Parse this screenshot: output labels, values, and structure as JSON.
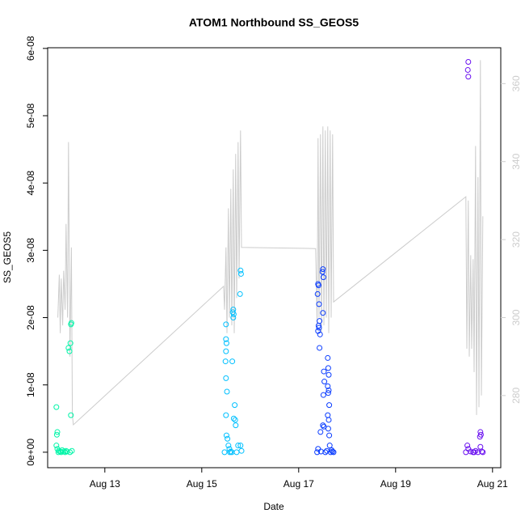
{
  "chart_data": {
    "type": "scatter",
    "title": "ATOM1 Northbound SS_GEOS5",
    "x_label": "Date",
    "y_label": "SS_GEOS5",
    "xlim": [
      11.82,
      21.17
    ],
    "xticks": [
      {
        "value": 13,
        "label": "Aug 13"
      },
      {
        "value": 15,
        "label": "Aug 15"
      },
      {
        "value": 17,
        "label": "Aug 17"
      },
      {
        "value": 19,
        "label": "Aug 19"
      },
      {
        "value": 21,
        "label": "Aug 21"
      }
    ],
    "ylim": [
      -2.3e-09,
      6.01e-08
    ],
    "yticks": [
      {
        "value": 0,
        "label": "0e+00"
      },
      {
        "value": 1e-08,
        "label": "1e-08"
      },
      {
        "value": 2e-08,
        "label": "2e-08"
      },
      {
        "value": 3e-08,
        "label": "3e-08"
      },
      {
        "value": 4e-08,
        "label": "4e-08"
      },
      {
        "value": 5e-08,
        "label": "5e-08"
      },
      {
        "value": 6e-08,
        "label": "6e-08"
      }
    ],
    "y2lim": [
      261.5,
      369.2
    ],
    "y2ticks": [
      280,
      300,
      320,
      340,
      360
    ],
    "series": [
      {
        "type": "line",
        "axis": "y2",
        "color": "#cccccc",
        "x": [
          12.03,
          12.06,
          12.08,
          12.1,
          12.13,
          12.15,
          12.18,
          12.2,
          12.23,
          12.25,
          12.28,
          12.31,
          12.33,
          12.35,
          15.45,
          15.47,
          15.5,
          15.52,
          15.55,
          15.57,
          15.6,
          15.62,
          15.65,
          15.67,
          15.7,
          15.72,
          15.75,
          15.77,
          15.8,
          15.82,
          17.35,
          17.38,
          17.4,
          17.42,
          17.45,
          17.47,
          17.5,
          17.52,
          17.55,
          17.57,
          17.6,
          17.62,
          17.65,
          17.67,
          17.7,
          17.72,
          20.45,
          20.47,
          20.5,
          20.52,
          20.55,
          20.57,
          20.6,
          20.62,
          20.65,
          20.67,
          20.7,
          20.72,
          20.75,
          20.77,
          20.8
        ],
        "values": [
          300,
          311,
          296,
          310,
          298,
          312,
          302,
          324,
          300,
          345,
          290,
          318,
          275,
          272.5,
          308,
          302,
          318,
          296,
          328,
          300,
          333,
          298,
          338,
          296,
          342,
          305,
          345,
          310,
          348,
          318,
          317.7,
          298,
          346,
          300,
          347,
          296,
          349,
          298,
          348,
          300,
          349,
          296,
          348,
          300,
          347,
          304,
          331,
          292,
          330,
          290,
          316,
          292,
          315,
          286,
          344,
          275,
          336,
          277,
          366,
          280,
          326
        ]
      },
      {
        "type": "scatter",
        "color": "#00f5a8",
        "x": [
          12.0,
          12.02,
          12.01,
          12.0,
          12.02,
          12.05,
          12.08,
          12.12,
          12.15,
          12.2,
          12.25,
          12.27,
          12.29,
          12.3,
          12.31,
          12.3,
          12.32,
          12.1,
          12.04,
          12.18,
          12.22,
          12.28
        ],
        "values": [
          6.7e-09,
          3e-09,
          2.6e-09,
          1e-09,
          5e-10,
          2e-10,
          1e-10,
          3e-10,
          1e-10,
          2e-10,
          1.55e-08,
          1.5e-08,
          1.62e-08,
          1.9e-08,
          1.92e-08,
          5.5e-09,
          2e-10,
          0,
          0,
          0,
          1e-10,
          0
        ]
      },
      {
        "type": "scatter",
        "color": "#00c0ff",
        "x": [
          15.5,
          15.5,
          15.51,
          15.5,
          15.49,
          15.5,
          15.52,
          15.5,
          15.51,
          15.53,
          15.55,
          15.57,
          15.65,
          15.64,
          15.66,
          15.65,
          15.63,
          15.68,
          15.66,
          15.69,
          15.7,
          15.8,
          15.81,
          15.79,
          15.8,
          15.82,
          15.47,
          15.58,
          15.6,
          15.72,
          15.75,
          15.62
        ],
        "values": [
          1.9e-08,
          1.68e-08,
          1.62e-08,
          1.5e-08,
          1.35e-08,
          1.1e-08,
          9e-09,
          5.5e-09,
          2.5e-09,
          2e-09,
          1e-09,
          5e-10,
          2.12e-08,
          2.08e-08,
          2.05e-08,
          2e-08,
          1.35e-08,
          7e-09,
          5e-09,
          4.8e-09,
          4e-09,
          2.7e-08,
          2.65e-08,
          2.35e-08,
          1e-09,
          2e-10,
          0,
          0,
          1e-10,
          0,
          1e-09,
          0
        ]
      },
      {
        "type": "scatter",
        "color": "#0a3cff",
        "x": [
          17.4,
          17.41,
          17.39,
          17.42,
          17.43,
          17.41,
          17.42,
          17.4,
          17.44,
          17.43,
          17.45,
          17.4,
          17.5,
          17.49,
          17.51,
          17.5,
          17.52,
          17.53,
          17.51,
          17.5,
          17.52,
          17.6,
          17.61,
          17.62,
          17.6,
          17.62,
          17.61,
          17.63,
          17.6,
          17.62,
          17.61,
          17.63,
          17.64,
          17.38,
          17.46,
          17.55,
          17.58,
          17.66,
          17.7,
          17.72,
          17.68
        ],
        "values": [
          2.5e-08,
          2.48e-08,
          2.35e-08,
          2.2e-08,
          1.95e-08,
          1.88e-08,
          1.85e-08,
          1.8e-08,
          1.75e-08,
          1.55e-08,
          3e-09,
          5e-10,
          2.72e-08,
          2.68e-08,
          2.6e-08,
          2.07e-08,
          1.2e-08,
          1.05e-08,
          8.5e-09,
          4e-09,
          3.8e-09,
          1.4e-08,
          1.25e-08,
          1.15e-08,
          9.8e-09,
          9.2e-09,
          8.8e-09,
          7e-09,
          5.5e-09,
          4.8e-09,
          3.5e-09,
          2.5e-09,
          1e-09,
          0,
          1e-10,
          0,
          2e-10,
          0,
          1e-10,
          0,
          3e-10
        ]
      },
      {
        "type": "scatter",
        "color": "#6a10f0",
        "x": [
          20.5,
          20.49,
          20.5,
          20.48,
          20.5,
          20.55,
          20.6,
          20.65,
          20.75,
          20.76,
          20.74,
          20.75,
          20.7,
          20.78,
          20.8,
          20.45,
          20.62
        ],
        "values": [
          5.8e-08,
          5.68e-08,
          5.58e-08,
          1e-09,
          5e-10,
          1e-10,
          0,
          2e-10,
          3e-09,
          2.6e-09,
          2.3e-09,
          8e-10,
          0,
          1e-10,
          0,
          0,
          0
        ]
      }
    ]
  }
}
